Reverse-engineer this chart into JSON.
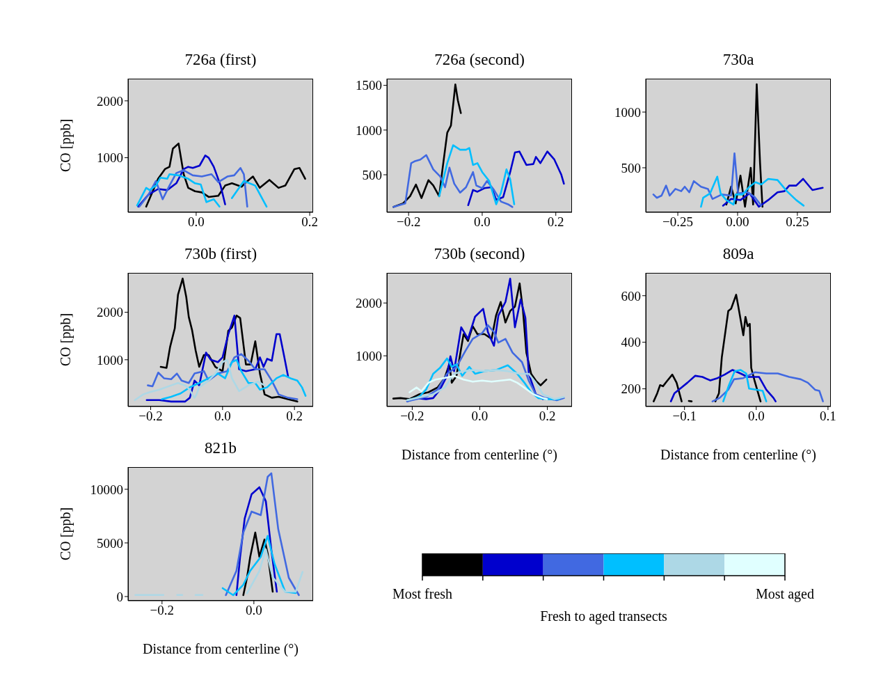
{
  "chart_data": [
    {
      "type": "line",
      "title": "726a (first)",
      "ylabel": "CO [ppb]",
      "xlim": [
        -0.12,
        0.206
      ],
      "ylim": [
        40,
        2390
      ],
      "xticks": [
        {
          "value": 0,
          "label": "0.0"
        },
        {
          "value": 0.2,
          "label": "0.2"
        }
      ],
      "yticks": [
        1000,
        2000
      ],
      "series": [
        {
          "color": "#000000",
          "x": [
            -0.088,
            -0.067,
            -0.055,
            -0.047,
            -0.041,
            -0.031,
            -0.022,
            -0.014,
            -0.002,
            0.01,
            0.022,
            0.039,
            0.051,
            0.063,
            0.08,
            0.088,
            0.1,
            0.112,
            0.129,
            0.145,
            0.157,
            0.173,
            0.182,
            0.192
          ],
          "values": [
            140,
            630,
            800,
            840,
            1160,
            1250,
            710,
            470,
            410,
            390,
            310,
            330,
            510,
            550,
            490,
            570,
            670,
            470,
            610,
            470,
            510,
            800,
            820,
            630
          ]
        },
        {
          "color": "#0000cd",
          "x": [
            -0.102,
            -0.084,
            -0.067,
            -0.051,
            -0.035,
            -0.022,
            -0.014,
            -0.006,
            0.006,
            0.016,
            0.022,
            0.031,
            0.043,
            0.051
          ],
          "values": [
            140,
            350,
            450,
            430,
            550,
            800,
            840,
            820,
            860,
            1040,
            1000,
            840,
            510,
            180
          ]
        },
        {
          "color": "#4169e1",
          "x": [
            -0.1,
            -0.084,
            -0.071,
            -0.059,
            -0.047,
            -0.035,
            -0.022,
            -0.006,
            0.01,
            0.027,
            0.039,
            0.055,
            0.067,
            0.078,
            0.084,
            0.09
          ],
          "values": [
            140,
            350,
            590,
            270,
            510,
            730,
            780,
            690,
            670,
            710,
            570,
            670,
            690,
            820,
            710,
            140
          ]
        },
        {
          "color": "#00bfff",
          "x": [
            -0.104,
            -0.088,
            -0.082,
            -0.071,
            -0.063,
            -0.051,
            -0.047,
            -0.031,
            -0.014,
            -0.002,
            0.008,
            0.018,
            0.031,
            0.041,
            0.052,
            0.063,
            0.084,
            0.104,
            0.124
          ],
          "values": [
            160,
            470,
            430,
            510,
            650,
            630,
            710,
            690,
            630,
            550,
            530,
            220,
            270,
            140,
            null,
            290,
            590,
            510,
            140
          ]
        }
      ]
    },
    {
      "type": "line",
      "title": "726a (second)",
      "xlim": [
        -0.259,
        0.244
      ],
      "ylim": [
        80,
        1575
      ],
      "xticks": [
        {
          "value": -0.2,
          "label": "−0.2"
        },
        {
          "value": 0,
          "label": "0.0"
        },
        {
          "value": 0.2,
          "label": "0.2"
        }
      ],
      "yticks": [
        500,
        1000,
        1500
      ],
      "series": [
        {
          "color": "#000000",
          "x": [
            -0.241,
            -0.215,
            -0.196,
            -0.18,
            -0.165,
            -0.146,
            -0.133,
            -0.117,
            -0.108,
            -0.095,
            -0.085,
            -0.079,
            -0.073,
            -0.066,
            -0.058
          ],
          "values": [
            140,
            180,
            260,
            390,
            240,
            440,
            380,
            260,
            560,
            970,
            1050,
            1280,
            1510,
            1330,
            1190
          ]
        },
        {
          "color": "#0000cd",
          "x": [
            -0.038,
            -0.025,
            -0.013,
            0.006,
            0.025,
            0.038,
            0.057,
            0.076,
            0.089,
            0.101,
            0.12,
            0.139,
            0.146,
            0.158,
            0.177,
            0.196,
            0.215,
            0.222
          ],
          "values": [
            160,
            330,
            310,
            350,
            360,
            220,
            250,
            530,
            750,
            760,
            610,
            620,
            700,
            630,
            760,
            670,
            500,
            400
          ]
        },
        {
          "color": "#4169e1",
          "x": [
            -0.241,
            -0.209,
            -0.193,
            -0.184,
            -0.168,
            -0.152,
            -0.133,
            -0.114,
            -0.101,
            -0.089,
            -0.076,
            -0.06,
            -0.044,
            -0.025,
            -0.016,
            0.0,
            0.013,
            0.032,
            0.051,
            0.07,
            0.082
          ],
          "values": [
            140,
            180,
            630,
            650,
            670,
            720,
            560,
            480,
            360,
            580,
            400,
            300,
            360,
            530,
            380,
            350,
            430,
            330,
            200,
            170,
            140
          ]
        },
        {
          "color": "#00bfff",
          "x": [
            -0.117,
            -0.095,
            -0.079,
            -0.06,
            -0.044,
            -0.035,
            -0.025,
            -0.013,
            0.0,
            0.019,
            0.038,
            0.051,
            0.066,
            0.076,
            0.087
          ],
          "values": [
            260,
            630,
            830,
            780,
            780,
            800,
            610,
            630,
            530,
            430,
            170,
            300,
            560,
            450,
            170
          ]
        }
      ]
    },
    {
      "type": "line",
      "title": "730a",
      "xlim": [
        -0.384,
        0.39
      ],
      "ylim": [
        100,
        1300
      ],
      "xticks": [
        {
          "value": -0.25,
          "label": "−0.25"
        },
        {
          "value": 0,
          "label": "0.00"
        },
        {
          "value": 0.25,
          "label": "0.25"
        }
      ],
      "yticks": [
        500,
        1000
      ],
      "series": [
        {
          "color": "#000000",
          "x": [
            -0.047,
            -0.027,
            -0.008,
            0.012,
            0.031,
            0.055,
            0.065,
            0.08,
            0.094,
            0.104
          ],
          "values": [
            170,
            330,
            180,
            430,
            150,
            500,
            170,
            1250,
            540,
            150
          ]
        },
        {
          "color": "#0000cd",
          "x": [
            -0.061,
            -0.027,
            0.012,
            0.05,
            0.07,
            0.089,
            0.128,
            0.167,
            0.196,
            0.216,
            0.245,
            0.274,
            0.313,
            0.356
          ],
          "values": [
            160,
            220,
            210,
            270,
            210,
            150,
            210,
            280,
            290,
            340,
            340,
            400,
            300,
            320
          ]
        },
        {
          "color": "#4169e1",
          "x": [
            -0.352,
            -0.338,
            -0.318,
            -0.299,
            -0.284,
            -0.26,
            -0.236,
            -0.221,
            -0.202,
            -0.183,
            -0.153,
            -0.124,
            -0.105,
            -0.066,
            -0.027,
            -0.013,
            0.002,
            0.041,
            0.07,
            0.099
          ],
          "values": [
            260,
            230,
            250,
            340,
            250,
            310,
            290,
            330,
            280,
            380,
            330,
            310,
            220,
            260,
            250,
            630,
            270,
            280,
            240,
            160
          ]
        },
        {
          "color": "#00bfff",
          "x": [
            -0.153,
            -0.144,
            -0.115,
            -0.085,
            -0.071,
            -0.047,
            -0.017,
            -0.008,
            0.021,
            0.05,
            0.075,
            0.099,
            0.128,
            0.167,
            0.206,
            0.245,
            0.276
          ],
          "values": [
            150,
            230,
            270,
            420,
            270,
            210,
            170,
            260,
            260,
            330,
            370,
            350,
            400,
            390,
            290,
            210,
            160
          ]
        }
      ]
    },
    {
      "type": "line",
      "title": "730b (first)",
      "ylabel": "CO [ppb]",
      "xlim": [
        -0.263,
        0.252
      ],
      "ylim": [
        15,
        2830
      ],
      "xticks": [
        {
          "value": -0.2,
          "label": "−0.2"
        },
        {
          "value": 0,
          "label": "0.0"
        },
        {
          "value": 0.2,
          "label": "0.2"
        }
      ],
      "yticks": [
        1000,
        2000
      ],
      "series": [
        {
          "color": "#000000",
          "x": [
            -0.172,
            -0.156,
            -0.146,
            -0.133,
            -0.124,
            -0.111,
            -0.101,
            -0.094,
            -0.085,
            -0.075,
            -0.065,
            -0.052,
            -0.039,
            -0.02,
            0.0,
            0.016,
            0.026,
            0.039,
            0.049,
            0.065,
            0.078,
            0.091,
            0.104,
            0.117,
            0.137,
            0.156,
            0.182,
            0.208
          ],
          "values": [
            850,
            830,
            1270,
            1660,
            2370,
            2710,
            2320,
            1900,
            1630,
            1200,
            850,
            1100,
            1100,
            850,
            760,
            1610,
            1680,
            1930,
            1880,
            900,
            900,
            1390,
            710,
            270,
            200,
            220,
            170,
            120
          ]
        },
        {
          "color": "#0000cd",
          "x": [
            -0.211,
            -0.176,
            -0.143,
            -0.104,
            -0.091,
            -0.078,
            -0.065,
            -0.046,
            -0.033,
            -0.013,
            0.0,
            0.016,
            0.033,
            0.046,
            0.065,
            0.091,
            0.104,
            0.114,
            0.124,
            0.137,
            0.15,
            0.159,
            0.172,
            0.182
          ],
          "values": [
            150,
            150,
            120,
            120,
            200,
            560,
            460,
            1150,
            1000,
            950,
            1050,
            1540,
            1930,
            800,
            760,
            800,
            1050,
            850,
            1020,
            980,
            1540,
            1540,
            1050,
            660
          ]
        },
        {
          "color": "#4169e1",
          "x": [
            -0.208,
            -0.195,
            -0.179,
            -0.163,
            -0.143,
            -0.127,
            -0.114,
            -0.094,
            -0.078,
            -0.052,
            -0.039,
            -0.013,
            0.013,
            0.033,
            0.052,
            0.072,
            0.091,
            0.117,
            0.137,
            0.156,
            0.182,
            0.208
          ],
          "values": [
            460,
            440,
            730,
            610,
            590,
            710,
            560,
            510,
            710,
            760,
            560,
            710,
            760,
            1050,
            1120,
            980,
            800,
            800,
            560,
            270,
            200,
            170
          ]
        },
        {
          "color": "#00bfff",
          "x": [
            -0.169,
            -0.143,
            -0.117,
            -0.091,
            -0.065,
            -0.039,
            -0.013,
            0.007,
            0.026,
            0.039,
            0.052,
            0.072,
            0.091,
            0.104,
            0.124,
            0.15,
            0.169,
            0.189,
            0.208,
            0.221,
            0.231
          ],
          "values": [
            170,
            220,
            290,
            420,
            510,
            610,
            710,
            610,
            950,
            1000,
            760,
            510,
            510,
            370,
            420,
            610,
            680,
            610,
            560,
            420,
            240
          ]
        },
        {
          "color": "#add8e6",
          "x": [
            -0.244,
            -0.221,
            -0.202,
            -0.176,
            -0.143,
            -0.124,
            -0.104,
            -0.091,
            -0.083,
            -0.078,
            -0.073,
            -0.065,
            -0.039,
            -0.02,
            0.0,
            0.013,
            0.026,
            0.046,
            0.072,
            0.098,
            0.117
          ],
          "values": [
            150,
            270,
            320,
            370,
            460,
            510,
            460,
            370,
            250,
            200,
            260,
            420,
            560,
            710,
            950,
            1000,
            610,
            340,
            460,
            540,
            460
          ]
        }
      ]
    },
    {
      "type": "line",
      "title": "730b (second)",
      "xlabel": "Distance from centerline (°)",
      "xlim": [
        -0.275,
        0.273
      ],
      "ylim": [
        40,
        2570
      ],
      "xticks": [
        {
          "value": -0.2,
          "label": "−0.2"
        },
        {
          "value": 0,
          "label": "0.0"
        },
        {
          "value": 0.2,
          "label": "0.2"
        }
      ],
      "yticks": [
        1000,
        2000
      ],
      "series": [
        {
          "color": "#000000",
          "x": [
            -0.256,
            -0.235,
            -0.208,
            -0.18,
            -0.152,
            -0.125,
            -0.104,
            -0.09,
            -0.083,
            -0.069,
            -0.048,
            -0.035,
            -0.021,
            -0.007,
            0.014,
            0.035,
            0.048,
            0.062,
            0.076,
            0.09,
            0.104,
            0.118,
            0.128,
            0.138,
            0.152,
            0.166,
            0.18,
            0.197
          ],
          "values": [
            190,
            200,
            180,
            270,
            310,
            400,
            580,
            840,
            490,
            620,
            1410,
            1280,
            1560,
            1410,
            1410,
            1320,
            1760,
            2020,
            1630,
            1850,
            1930,
            2370,
            1850,
            1060,
            660,
            530,
            440,
            550
          ]
        },
        {
          "color": "#0000cd",
          "x": [
            -0.215,
            -0.187,
            -0.159,
            -0.138,
            -0.118,
            -0.097,
            -0.087,
            -0.076,
            -0.055,
            -0.035,
            -0.014,
            0.01,
            0.024,
            0.042,
            0.055,
            0.076,
            0.09,
            0.104,
            0.121,
            0.135,
            0.145,
            0.166,
            0.187
          ],
          "values": [
            140,
            200,
            180,
            200,
            360,
            620,
            990,
            710,
            1540,
            1320,
            1740,
            1890,
            1450,
            1190,
            1760,
            2020,
            2460,
            1540,
            2070,
            1720,
            660,
            270,
            180
          ]
        },
        {
          "color": "#4169e1",
          "x": [
            -0.215,
            -0.159,
            -0.125,
            -0.097,
            -0.069,
            -0.042,
            -0.021,
            0.007,
            0.024,
            0.042,
            0.055,
            0.076,
            0.097,
            0.125,
            0.145,
            0.166,
            0.194,
            0.228,
            0.249
          ],
          "values": [
            140,
            220,
            360,
            660,
            790,
            1100,
            1320,
            1430,
            1580,
            1450,
            1250,
            1320,
            1060,
            880,
            530,
            270,
            200,
            160,
            200
          ]
        },
        {
          "color": "#00bfff",
          "x": [
            -0.215,
            -0.18,
            -0.159,
            -0.138,
            -0.118,
            -0.097,
            -0.083,
            -0.069,
            -0.052,
            -0.031,
            -0.014,
            0.014,
            0.048,
            0.083,
            0.111,
            0.131,
            0.152,
            0.173,
            0.201,
            0.235
          ],
          "values": [
            160,
            220,
            360,
            660,
            770,
            950,
            790,
            840,
            620,
            790,
            660,
            710,
            730,
            820,
            660,
            500,
            310,
            200,
            180,
            180
          ]
        },
        {
          "color": "#add8e6",
          "x": [
            -0.215,
            -0.173,
            -0.138,
            -0.104,
            -0.076,
            -0.048,
            -0.021,
            0.014,
            0.048,
            0.083,
            0.118,
            0.145,
            0.166,
            0.187,
            0.221,
            0.249
          ],
          "values": [
            160,
            220,
            270,
            400,
            660,
            710,
            730,
            710,
            730,
            710,
            660,
            660,
            490,
            270,
            180,
            220
          ]
        },
        {
          "color": "#e0ffff",
          "x": [
            -0.208,
            -0.187,
            -0.173,
            -0.152,
            -0.131,
            -0.104,
            -0.076,
            -0.048,
            -0.021,
            0.007,
            0.035,
            0.062,
            0.09,
            0.111,
            0.131,
            0.159,
            0.187,
            0.199
          ],
          "values": [
            310,
            400,
            330,
            490,
            550,
            580,
            620,
            550,
            510,
            530,
            510,
            530,
            550,
            490,
            400,
            270,
            200,
            180
          ]
        }
      ]
    },
    {
      "type": "line",
      "title": "809a",
      "xlabel": "Distance from centerline (°)",
      "xlim": [
        -0.154,
        0.104
      ],
      "ylim": [
        124,
        698
      ],
      "xticks": [
        {
          "value": -0.1,
          "label": "−0.1"
        },
        {
          "value": 0,
          "label": "0.0"
        },
        {
          "value": 0.1,
          "label": "0.1"
        }
      ],
      "yticks": [
        200,
        400,
        600
      ],
      "series": [
        {
          "color": "#000000",
          "x": [
            -0.143,
            -0.138,
            -0.134,
            -0.13,
            -0.125,
            -0.117,
            -0.111,
            -0.104,
            -0.099,
            -0.094,
            -0.09,
            -0.074,
            -0.057,
            -0.052,
            -0.048,
            -0.039,
            -0.035,
            -0.028,
            -0.025,
            -0.018,
            -0.015,
            -0.012,
            -0.009,
            -0.007,
            -0.002,
            0.006
          ],
          "values": [
            146,
            181,
            216,
            211,
            231,
            261,
            226,
            146,
            null,
            148,
            146,
            null,
            146,
            181,
            335,
            534,
            544,
            604,
            554,
            430,
            509,
            469,
            479,
            290,
            231,
            146
          ]
        },
        {
          "color": "#0000cd",
          "x": [
            -0.119,
            -0.114,
            -0.106,
            -0.096,
            -0.085,
            -0.075,
            -0.064,
            -0.054,
            -0.044,
            -0.033,
            -0.022,
            -0.012,
            0.004,
            0.014,
            0.024,
            0.027
          ],
          "values": [
            146,
            181,
            201,
            226,
            256,
            251,
            236,
            246,
            261,
            281,
            266,
            251,
            251,
            196,
            161,
            146
          ]
        },
        {
          "color": "#4169e1",
          "x": [
            -0.061,
            -0.051,
            -0.039,
            -0.031,
            -0.018,
            -0.002,
            0.014,
            0.03,
            0.046,
            0.062,
            0.072,
            0.082,
            0.088,
            0.093
          ],
          "values": [
            146,
            161,
            196,
            241,
            246,
            271,
            266,
            266,
            251,
            241,
            226,
            196,
            191,
            146
          ]
        },
        {
          "color": "#00bfff",
          "x": [
            -0.046,
            -0.038,
            -0.03,
            -0.022,
            -0.014,
            -0.01,
            0.001,
            0.009,
            0.014
          ],
          "values": [
            146,
            216,
            276,
            281,
            266,
            201,
            196,
            191,
            146
          ]
        }
      ]
    },
    {
      "type": "line",
      "title": "821b",
      "ylabel": "CO [ppb]",
      "xlabel": "Distance from centerline (°)",
      "xlim": [
        -0.274,
        0.129
      ],
      "ylim": [
        -390,
        12070
      ],
      "xticks": [
        {
          "value": -0.2,
          "label": "−0.2"
        },
        {
          "value": 0,
          "label": "0.0"
        }
      ],
      "yticks": [
        0,
        5000,
        10000
      ],
      "series": [
        {
          "color": "#000000",
          "x": [
            -0.023,
            -0.015,
            -0.008,
            0.003,
            0.012,
            0.023,
            0.03,
            0.041
          ],
          "values": [
            130,
            1750,
            3700,
            5970,
            3700,
            5320,
            4020,
            450
          ]
        },
        {
          "color": "#0000cd",
          "x": [
            -0.038,
            -0.03,
            -0.02,
            -0.005,
            0.012,
            0.026,
            0.038,
            0.05
          ],
          "values": [
            130,
            3700,
            7270,
            9540,
            10190,
            8890,
            4350,
            450
          ]
        },
        {
          "color": "#4169e1",
          "x": [
            -0.061,
            -0.038,
            -0.023,
            -0.005,
            0.015,
            0.03,
            0.038,
            0.053,
            0.076,
            0.098
          ],
          "values": [
            130,
            2400,
            5970,
            7920,
            7590,
            11160,
            11490,
            6290,
            1750,
            130
          ]
        },
        {
          "color": "#00bfff",
          "x": [
            -0.068,
            -0.045,
            -0.023,
            -0.008,
            0.015,
            0.03,
            0.045,
            0.068,
            0.091
          ],
          "values": [
            780,
            130,
            1100,
            2400,
            3700,
            5650,
            3050,
            450,
            320
          ]
        },
        {
          "color": "#add8e6",
          "x": [
            -0.258,
            -0.197,
            -0.18,
            -0.167,
            -0.156,
            -0.14,
            -0.127,
            -0.112,
            -0.05,
            -0.015,
            0.012,
            0.026,
            0.041,
            0.068,
            0.091,
            0.106
          ],
          "values": [
            150,
            150,
            null,
            150,
            150,
            null,
            150,
            150,
            null,
            300,
            2400,
            4400,
            1800,
            450,
            450,
            2300
          ]
        }
      ]
    },
    {
      "type": "other",
      "clabel": "Fresh to aged transects",
      "colors": [
        "#000000",
        "#0000cd",
        "#4169e1",
        "#00bfff",
        "#add8e6",
        "#e0ffff"
      ],
      "annotations": [
        "Most fresh",
        "Most aged"
      ]
    }
  ]
}
